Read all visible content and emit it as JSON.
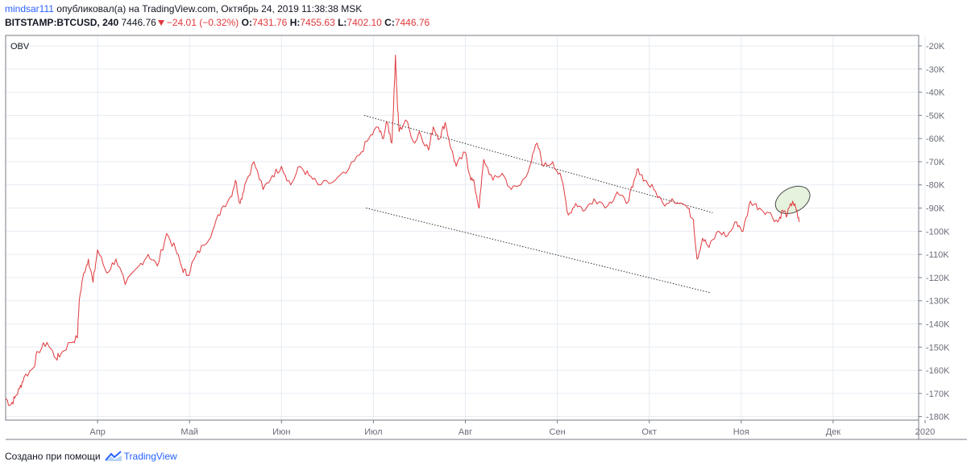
{
  "header": {
    "author": "mindsar111",
    "published_text": "опубликовал(а) на TradingView.com, Октябрь 24, 2019 11:38:38 MSK",
    "symbol": "BITSTAMP:BTCUSD, 240",
    "price": "7446.76",
    "change": "−24.01 (−0.32%)",
    "open_label": "O:",
    "open": "7431.76",
    "high_label": "H:",
    "high": "7455.63",
    "low_label": "L:",
    "low": "7402.10",
    "close_label": "C:",
    "close": "7446.76"
  },
  "footer": {
    "created_with": "Создано при помощи",
    "brand": "TradingView"
  },
  "colors": {
    "series": "#e0383c",
    "grid": "#e6ebf2",
    "axis_text": "#6a6d78",
    "border": "#787b86",
    "trendline": "#333333",
    "highlight_fill": "#dcedd2",
    "highlight_stroke": "#4b4b4b",
    "brand": "#2962ff"
  },
  "chart_data": {
    "type": "line",
    "indicator_label": "OBV",
    "x_labels": [
      "Апр",
      "Май",
      "Июн",
      "Июл",
      "Авг",
      "Сен",
      "Окт",
      "Ноя",
      "Дек",
      "2020"
    ],
    "y_ticks": [
      -20,
      -30,
      -40,
      -50,
      -60,
      -70,
      -80,
      -90,
      -100,
      -110,
      -120,
      -130,
      -140,
      -150,
      -160,
      -170,
      -180
    ],
    "y_tick_labels": [
      "-20K",
      "-30K",
      "-40K",
      "-50K",
      "-60K",
      "-70K",
      "-80K",
      "-90K",
      "-100K",
      "-110K",
      "-120K",
      "-130K",
      "-140K",
      "-150K",
      "-160K",
      "-170K",
      "-180K"
    ],
    "y_unit": "K",
    "ylim": [
      -181.5,
      -15.5
    ],
    "xlim": [
      0,
      9.93
    ],
    "grid": true,
    "series": [
      {
        "values": [
          [
            0.0,
            -172
          ],
          [
            0.05,
            -175
          ],
          [
            0.1,
            -172
          ],
          [
            0.15,
            -168
          ],
          [
            0.2,
            -163
          ],
          [
            0.3,
            -159
          ],
          [
            0.35,
            -152
          ],
          [
            0.45,
            -148
          ],
          [
            0.55,
            -155
          ],
          [
            0.6,
            -153
          ],
          [
            0.7,
            -148
          ],
          [
            0.78,
            -146
          ],
          [
            0.8,
            -130
          ],
          [
            0.85,
            -118
          ],
          [
            0.9,
            -112
          ],
          [
            0.95,
            -122
          ],
          [
            1.0,
            -108
          ],
          [
            1.1,
            -118
          ],
          [
            1.2,
            -112
          ],
          [
            1.3,
            -123
          ],
          [
            1.45,
            -115
          ],
          [
            1.55,
            -110
          ],
          [
            1.65,
            -115
          ],
          [
            1.75,
            -101
          ],
          [
            1.85,
            -108
          ],
          [
            1.92,
            -116
          ],
          [
            1.98,
            -119
          ],
          [
            2.05,
            -112
          ],
          [
            2.15,
            -106
          ],
          [
            2.25,
            -100
          ],
          [
            2.35,
            -90
          ],
          [
            2.45,
            -85
          ],
          [
            2.5,
            -78
          ],
          [
            2.55,
            -88
          ],
          [
            2.6,
            -80
          ],
          [
            2.7,
            -70
          ],
          [
            2.8,
            -82
          ],
          [
            2.9,
            -76
          ],
          [
            3.0,
            -72
          ],
          [
            3.1,
            -80
          ],
          [
            3.2,
            -72
          ],
          [
            3.3,
            -76
          ],
          [
            3.4,
            -80
          ],
          [
            3.55,
            -79
          ],
          [
            3.7,
            -75
          ],
          [
            3.85,
            -67
          ],
          [
            3.95,
            -60
          ],
          [
            4.05,
            -55
          ],
          [
            4.1,
            -60
          ],
          [
            4.15,
            -53
          ],
          [
            4.2,
            -62
          ],
          [
            4.22,
            -45
          ],
          [
            4.24,
            -24
          ],
          [
            4.26,
            -45
          ],
          [
            4.28,
            -57
          ],
          [
            4.35,
            -52
          ],
          [
            4.45,
            -62
          ],
          [
            4.5,
            -57
          ],
          [
            4.6,
            -65
          ],
          [
            4.65,
            -55
          ],
          [
            4.72,
            -60
          ],
          [
            4.78,
            -53
          ],
          [
            4.85,
            -65
          ],
          [
            4.9,
            -72
          ],
          [
            5.0,
            -66
          ],
          [
            5.05,
            -76
          ],
          [
            5.1,
            -80
          ],
          [
            5.15,
            -90
          ],
          [
            5.2,
            -69
          ],
          [
            5.3,
            -78
          ],
          [
            5.4,
            -75
          ],
          [
            5.5,
            -82
          ],
          [
            5.6,
            -80
          ],
          [
            5.7,
            -72
          ],
          [
            5.78,
            -62
          ],
          [
            5.85,
            -72
          ],
          [
            5.95,
            -70
          ],
          [
            6.05,
            -78
          ],
          [
            6.12,
            -93
          ],
          [
            6.2,
            -88
          ],
          [
            6.3,
            -91
          ],
          [
            6.4,
            -86
          ],
          [
            6.55,
            -89
          ],
          [
            6.65,
            -83
          ],
          [
            6.75,
            -88
          ],
          [
            6.82,
            -81
          ],
          [
            6.88,
            -73
          ],
          [
            6.95,
            -78
          ],
          [
            7.05,
            -82
          ],
          [
            7.15,
            -88
          ],
          [
            7.25,
            -86
          ],
          [
            7.4,
            -89
          ],
          [
            7.48,
            -95
          ],
          [
            7.52,
            -112
          ],
          [
            7.58,
            -103
          ],
          [
            7.65,
            -107
          ],
          [
            7.75,
            -100
          ],
          [
            7.85,
            -102
          ],
          [
            7.95,
            -96
          ],
          [
            8.02,
            -100
          ],
          [
            8.1,
            -87
          ],
          [
            8.2,
            -90
          ],
          [
            8.3,
            -92
          ],
          [
            8.4,
            -96
          ],
          [
            8.45,
            -91
          ],
          [
            8.5,
            -93
          ],
          [
            8.56,
            -87
          ],
          [
            8.6,
            -91
          ],
          [
            8.63,
            -96
          ]
        ]
      }
    ],
    "trendlines": [
      {
        "from": [
          3.9,
          -50
        ],
        "to": [
          7.69,
          -92
        ]
      },
      {
        "from": [
          3.92,
          -90
        ],
        "to": [
          7.66,
          -126.5
        ]
      }
    ],
    "highlight": {
      "center": [
        8.56,
        -86.5
      ],
      "rx": 0.2,
      "ry": 5.2
    }
  }
}
